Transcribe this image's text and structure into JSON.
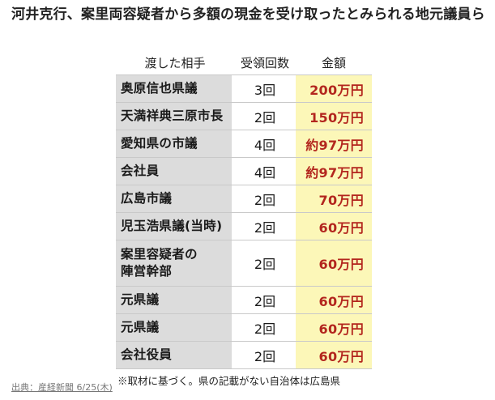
{
  "title": "河井克行、案里両容疑者から多額の現金を受け取ったとみられる地元議員ら",
  "table": {
    "headers": [
      "渡した相手",
      "受領回数",
      "金額"
    ],
    "rows": [
      {
        "name": "奥原信也県議",
        "count": "3回",
        "amount": "200万円"
      },
      {
        "name": "天満祥典三原市長",
        "count": "2回",
        "amount": "150万円"
      },
      {
        "name": "愛知県の市議",
        "count": "4回",
        "amount": "約97万円"
      },
      {
        "name": "会社員",
        "count": "4回",
        "amount": "約97万円"
      },
      {
        "name": "広島市議",
        "count": "2回",
        "amount": "70万円"
      },
      {
        "name": "児玉浩県議(当時)",
        "count": "2回",
        "amount": "60万円"
      },
      {
        "name": "案里容疑者の\n陣営幹部",
        "count": "2回",
        "amount": "60万円"
      },
      {
        "name": "元県議",
        "count": "2回",
        "amount": "60万円"
      },
      {
        "name": "元県議",
        "count": "2回",
        "amount": "60万円"
      },
      {
        "name": "会社役員",
        "count": "2回",
        "amount": "60万円"
      }
    ]
  },
  "footnote": "※取材に基づく。県の記載がない自治体は広島県",
  "source": "出典：産経新聞 6/25(木)",
  "colors": {
    "name_bg": "#dcdcdc",
    "amount_bg": "#fcf7b8",
    "amount_text": "#b3261e"
  }
}
